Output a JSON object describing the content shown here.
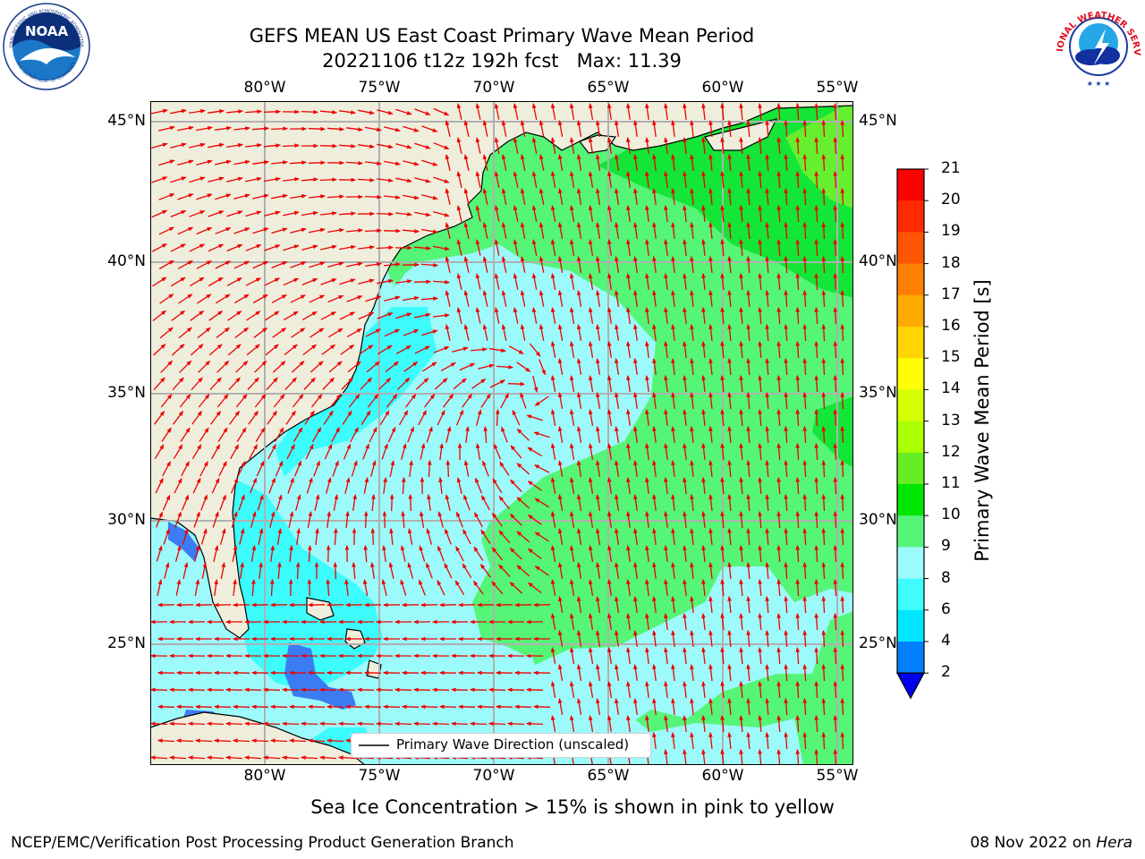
{
  "title": {
    "line1": "GEFS MEAN US East Coast Primary Wave Mean Period",
    "line2": "20221106 t12z 192h fcst   Max: 11.39"
  },
  "map": {
    "lon_labels": [
      "80°W",
      "75°W",
      "70°W",
      "65°W",
      "60°W",
      "55°W"
    ],
    "lat_labels": [
      "45°N",
      "40°N",
      "35°N",
      "30°N",
      "25°N"
    ],
    "legend_label": "Primary Wave Direction (unscaled)",
    "colors": {
      "land": "#efeedc",
      "ocean_light": "#9dfafa",
      "ocean_cyan": "#3dfcfc",
      "ocean_blue": "#3c7cf2",
      "green_light": "#55f577",
      "green_mid": "#13e636",
      "green_bright": "#00e600",
      "yellow_green": "#66ef2e",
      "arrow": "#ee0000"
    }
  },
  "colorbar": {
    "title": "Primary Wave Mean Period [s]",
    "ticks": [
      "21",
      "20",
      "19",
      "18",
      "17",
      "16",
      "15",
      "14",
      "13",
      "12",
      "11",
      "10",
      "9",
      "8",
      "6",
      "4",
      "2"
    ],
    "colors": [
      "#ff0000",
      "#ff2a00",
      "#ff5500",
      "#ff7f00",
      "#ffaa00",
      "#ffd400",
      "#ffff00",
      "#d4ff00",
      "#aaff00",
      "#66ee22",
      "#00e600",
      "#55f577",
      "#9dfafa",
      "#40fcfc",
      "#00e6ff",
      "#0080ff",
      "#0000ee"
    ]
  },
  "footer": {
    "subnote": "Sea Ice Concentration > 15% is shown in pink to yellow",
    "left": "NCEP/EMC/Verification Post Processing Product Generation Branch",
    "right_prefix": "08 Nov 2022 on ",
    "right_host": "Hera"
  },
  "logos": {
    "noaa": "NOAA",
    "noaa_ring": "NATIONAL OCEANIC AND ATMOSPHERIC ADMINISTRATION",
    "noaa_ring_bottom": "U.S. DEPARTMENT OF COMMERCE",
    "nws_ring": "NATIONAL WEATHER SERVICE"
  }
}
